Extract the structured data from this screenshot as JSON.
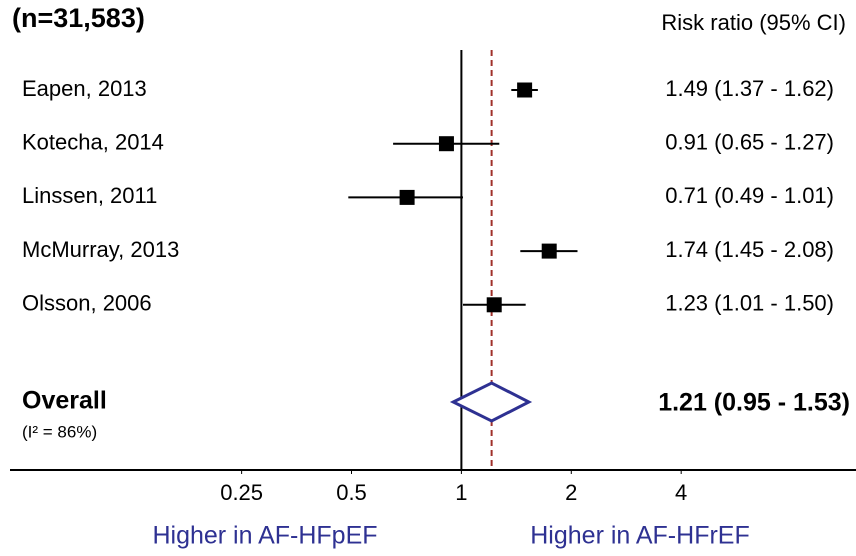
{
  "chart_data": {
    "type": "forest",
    "title": "(n=31,583)",
    "estimate_header": "Risk ratio (95% CI)",
    "categories": [
      "Eapen, 2013",
      "Kotecha, 2014",
      "Linssen, 2011",
      "McMurray, 2013",
      "Olsson, 2006"
    ],
    "values": [
      1.49,
      0.91,
      0.71,
      1.74,
      1.23
    ],
    "lower": [
      1.37,
      0.65,
      0.49,
      1.45,
      1.01
    ],
    "upper": [
      1.62,
      1.27,
      1.01,
      2.08,
      1.5
    ],
    "value_labels": [
      "1.49 (1.37 - 1.62)",
      "0.91 (0.65 - 1.27)",
      "0.71 (0.49 - 1.01)",
      "1.74 (1.45 - 2.08)",
      "1.23 (1.01 - 1.50)"
    ],
    "overall": {
      "name": "Overall",
      "note": "(I² = 86%)",
      "value": 1.21,
      "lower": 0.95,
      "upper": 1.53,
      "value_label": "1.21 (0.95 - 1.53)"
    },
    "xlim": [
      0.058,
      12.05
    ],
    "xticks": [
      0.25,
      0.5,
      1,
      2,
      4
    ],
    "log_scale": true,
    "reference_line": 1,
    "left_label": "Higher in AF-HFpEF",
    "right_label": "Higher in AF-HFrEF",
    "color": "#000000",
    "overall_color": "#2e3192",
    "overall_line_color": "#a0302a"
  }
}
